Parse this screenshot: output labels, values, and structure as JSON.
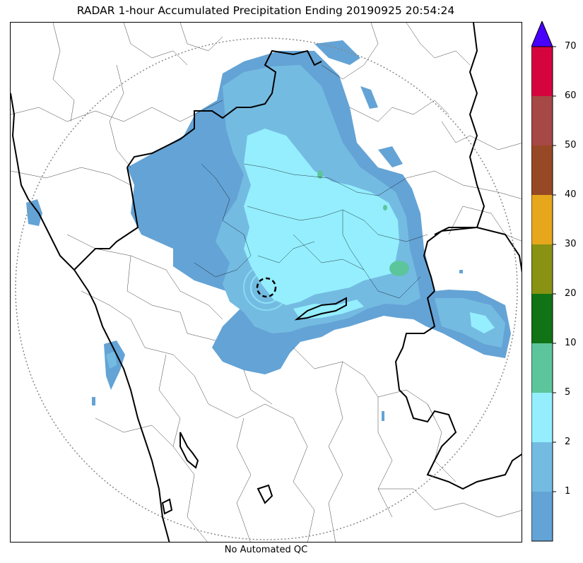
{
  "title": "RADAR 1-hour Accumulated Precipitation Ending 20190925 20:54:24",
  "caption": "No Automated QC",
  "colorbar": {
    "ticks": [
      "1",
      "2",
      "5",
      "10",
      "20",
      "30",
      "40",
      "50",
      "60",
      "70"
    ],
    "colors": [
      "#64a3d5",
      "#74bbe2",
      "#94eefe",
      "#5cc59c",
      "#107315",
      "#899213",
      "#e7a71c",
      "#974925",
      "#a64845",
      "#d5043f"
    ],
    "extend_color": "#4800fd"
  },
  "map": {
    "background": "#ffffff",
    "range_ring": "dotted",
    "radar_marker": "dashed-circle"
  }
}
